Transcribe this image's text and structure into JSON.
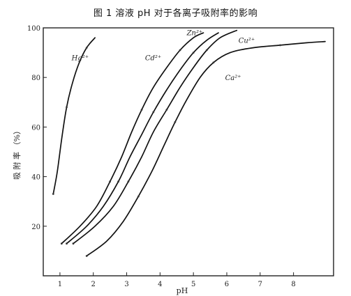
{
  "chart_data": {
    "type": "line",
    "title": "图 1 溶液 pH 对于各离子吸附率的影响",
    "xlabel": "pH",
    "ylabel": "吸 附 率 （%）",
    "xlim": [
      0.5,
      9.2
    ],
    "ylim": [
      0,
      100
    ],
    "x_ticks": [
      1,
      2,
      3,
      4,
      5,
      6,
      7,
      8
    ],
    "x_tick_labels": [
      "1",
      "2",
      "3",
      "4",
      "5",
      "6",
      "7",
      "8"
    ],
    "y_ticks": [
      20,
      40,
      60,
      80,
      100
    ],
    "y_tick_labels": [
      "20",
      "40",
      "60",
      "80",
      "100"
    ],
    "grid": false,
    "legend": "none",
    "series": [
      {
        "name": "Hg²⁺",
        "label_text": "Hg²⁺",
        "label_at": [
          1.35,
          87
        ],
        "x": [
          0.8,
          0.92,
          1.05,
          1.2,
          1.38,
          1.58,
          1.8,
          2.05
        ],
        "y": [
          33,
          42,
          55,
          68,
          78,
          86,
          92,
          96
        ]
      },
      {
        "name": "Cd²⁺",
        "label_text": "Cd²⁺",
        "label_at": [
          3.55,
          87
        ],
        "x": [
          1.05,
          1.6,
          2.1,
          2.5,
          2.85,
          3.15,
          3.45,
          3.8,
          4.2,
          4.6,
          5.0,
          5.3
        ],
        "y": [
          13,
          20,
          28,
          38,
          48,
          58,
          67,
          76,
          84,
          91,
          96,
          98
        ]
      },
      {
        "name": "Zn²⁺",
        "label_text": "Zn²⁺",
        "label_at": [
          4.8,
          97
        ],
        "x": [
          1.2,
          1.8,
          2.3,
          2.75,
          3.1,
          3.45,
          3.8,
          4.2,
          4.6,
          5.0,
          5.4,
          5.75
        ],
        "y": [
          13,
          20,
          28,
          38,
          48,
          57,
          66,
          75,
          83,
          90,
          95,
          98
        ]
      },
      {
        "name": "Cu²⁺",
        "label_text": "Cu²⁺",
        "label_at": [
          6.35,
          94
        ],
        "x": [
          1.4,
          2.05,
          2.6,
          3.05,
          3.45,
          3.8,
          4.2,
          4.6,
          5.0,
          5.4,
          5.8,
          6.3
        ],
        "y": [
          13,
          20,
          28,
          38,
          48,
          58,
          67,
          76,
          84,
          91,
          96,
          99
        ]
      },
      {
        "name": "Ca²⁺",
        "label_text": "Ca²⁺",
        "label_at": [
          5.95,
          79
        ],
        "x": [
          1.8,
          2.4,
          2.9,
          3.35,
          3.75,
          4.1,
          4.45,
          4.8,
          5.2,
          5.6,
          6.1,
          6.8,
          7.6,
          8.4,
          8.95
        ],
        "y": [
          8,
          14,
          22,
          32,
          42,
          52,
          62,
          71,
          80,
          86,
          90,
          92,
          93,
          94,
          94.5
        ]
      }
    ]
  }
}
